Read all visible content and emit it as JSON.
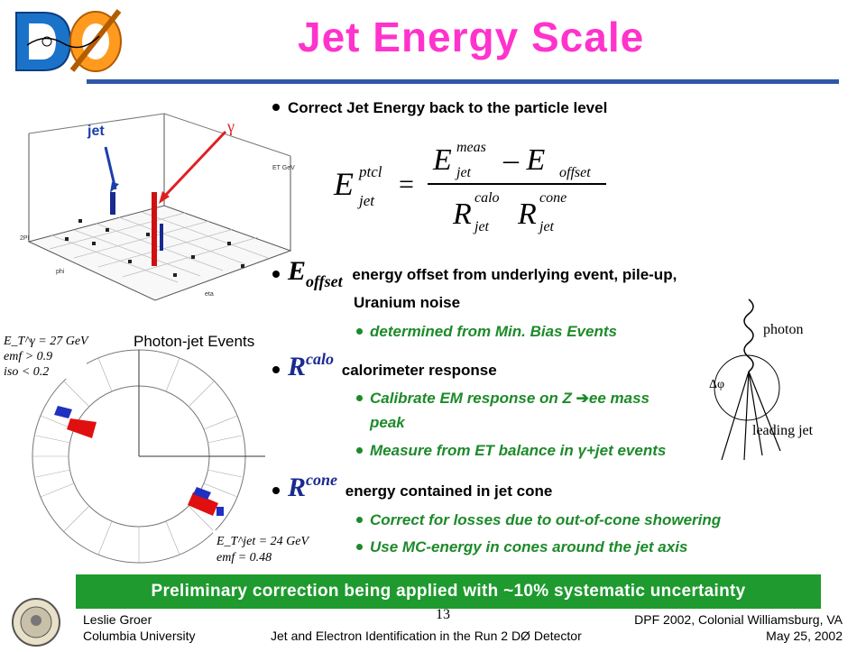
{
  "title": "Jet Energy Scale",
  "logo": {
    "text": "DØ"
  },
  "figure_top": {
    "jet_label": "jet",
    "gamma_label": "γ",
    "axis_et": "ET GeV",
    "axis_phi": "phi",
    "axis_eta": "eta",
    "axis_2pi": "2PI"
  },
  "figure_bottom": {
    "caption": "Photon-jet Events",
    "upper_box": [
      "E_T^γ = 27 GeV",
      "emf > 0.9",
      "iso < 0.2"
    ],
    "lower_box": [
      "E_T^jet = 24 GeV",
      "emf = 0.48"
    ]
  },
  "figure_right": {
    "photon_label": "photon",
    "dphi_label": "Δφ",
    "jet_label": "leading jet"
  },
  "bullets": {
    "b1": "Correct Jet Energy back to the particle level",
    "formula": {
      "lhs_base": "E",
      "lhs_sup": "ptcl",
      "lhs_sub": "jet",
      "num_base1": "E",
      "num_sup1": "meas",
      "num_sub1": "jet",
      "minus": "– E",
      "num_sub2": "offset",
      "den_base": "R",
      "den_sup1": "calo",
      "den_sub1": "jet",
      "den_sup2": "cone",
      "den_sub2": "jet"
    },
    "b2_sym": "E",
    "b2_sub": "offset",
    "b2_text": "energy offset from underlying event, pile-up,",
    "b2_text2": "Uranium noise",
    "b2_s1": "determined from Min. Bias Events",
    "b3_sym": "R",
    "b3_sup": "calo",
    "b3_text": "calorimeter response",
    "b3_s1a": "Calibrate EM response on Z",
    "b3_s1b": "ee mass",
    "b3_s1c": "peak",
    "b3_s2a": "Measure from ET balance in",
    "b3_s2b": "γ+jet events",
    "b4_sym": "R",
    "b4_sup": "cone",
    "b4_text": "energy contained in jet cone",
    "b4_s1": "Correct for losses due to out-of-cone showering",
    "b4_s2": "Use MC-energy in cones around the jet axis"
  },
  "banner": "Preliminary correction being applied with ~10% systematic uncertainty",
  "footer": {
    "left1": "Leslie Groer",
    "left2": "Columbia University",
    "center": "Jet and Electron Identification in the Run 2 DØ Detector",
    "right1": "DPF 2002, Colonial Williamsburg, VA",
    "right2": "May 25, 2002",
    "page": "13"
  },
  "colors": {
    "title": "#ff33cc",
    "rule": "#2f57a8",
    "green": "#1d8a2a",
    "banner": "#1e9a2e"
  }
}
